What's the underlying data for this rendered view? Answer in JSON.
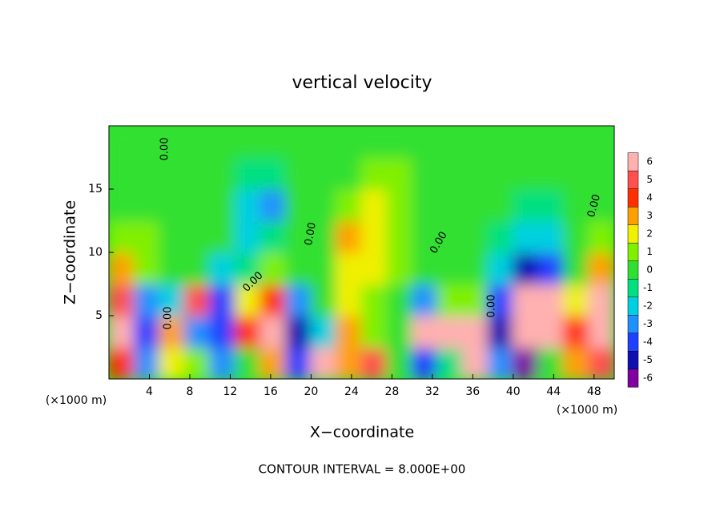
{
  "chart_data": {
    "type": "heatmap",
    "title": "vertical velocity",
    "x_label": "X−coordinate",
    "y_label": "Z−coordinate",
    "x_unit": "(×1000 m)",
    "y_unit": "(×1000 m)",
    "footer": "CONTOUR INTERVAL = 8.000E+00",
    "xlim": [
      0,
      50
    ],
    "ylim": [
      0,
      20
    ],
    "xticks": [
      4,
      8,
      12,
      16,
      20,
      24,
      28,
      32,
      36,
      40,
      44,
      48
    ],
    "yticks": [
      5,
      10,
      15
    ],
    "x": [
      1.25,
      3.75,
      6.25,
      8.75,
      11.25,
      13.75,
      16.25,
      18.75,
      21.25,
      23.75,
      26.25,
      28.75,
      31.25,
      33.75,
      36.25,
      38.75,
      41.25,
      43.75,
      46.25,
      48.75
    ],
    "y": [
      1.25,
      3.75,
      6.25,
      8.75,
      11.25,
      13.75,
      16.25,
      18.75
    ],
    "z": [
      [
        4,
        -3,
        2,
        1,
        -3,
        0,
        3,
        -4,
        6,
        3,
        5,
        0,
        -4,
        -1,
        6,
        -3,
        -6,
        0,
        3,
        5
      ],
      [
        6,
        -4,
        3,
        -3,
        -4,
        4,
        6,
        -5,
        -2,
        3,
        1,
        0,
        6,
        6,
        6,
        -5,
        6,
        6,
        4,
        6
      ],
      [
        5,
        -3,
        -2,
        5,
        -4,
        2,
        4,
        -3,
        0,
        2,
        1,
        0,
        -3,
        1,
        1,
        -4,
        6,
        6,
        2,
        6
      ],
      [
        3,
        1,
        0,
        0,
        -2,
        -1,
        1,
        0,
        0,
        2,
        2,
        1,
        0,
        0,
        0,
        -2,
        -5,
        -4,
        0,
        3
      ],
      [
        1,
        1,
        0,
        0,
        0,
        -2,
        -1,
        0,
        0,
        3,
        2,
        1,
        0,
        0,
        0,
        -1,
        -2,
        -2,
        0,
        1
      ],
      [
        0,
        0,
        0,
        0,
        0,
        -2,
        -3,
        0,
        0,
        1,
        2,
        1,
        0,
        0,
        0,
        0,
        -1,
        -1,
        0,
        0
      ],
      [
        0,
        0,
        0,
        0,
        0,
        -1,
        -1,
        0,
        0,
        0,
        1,
        1,
        0,
        0,
        0,
        0,
        0,
        0,
        0,
        0
      ],
      [
        0,
        0,
        0,
        0,
        0,
        0,
        0,
        0,
        0,
        0,
        0,
        0,
        0,
        0,
        0,
        0,
        0,
        0,
        0,
        0
      ]
    ],
    "colorbar": {
      "levels": [
        -6,
        -5,
        -4,
        -3,
        -2,
        -1,
        0,
        1,
        2,
        3,
        4,
        5,
        6
      ],
      "colors": [
        "#8000a0",
        "#1010b0",
        "#2040ff",
        "#2090ff",
        "#00d0e0",
        "#00e080",
        "#30e030",
        "#80f000",
        "#f0f000",
        "#ffa000",
        "#ff3000",
        "#ff5050",
        "#ffb0b0"
      ]
    },
    "annotations": [
      "0.00",
      "0.00",
      "0.00",
      "0.00",
      "0.00",
      "0.00",
      "0.00"
    ]
  }
}
